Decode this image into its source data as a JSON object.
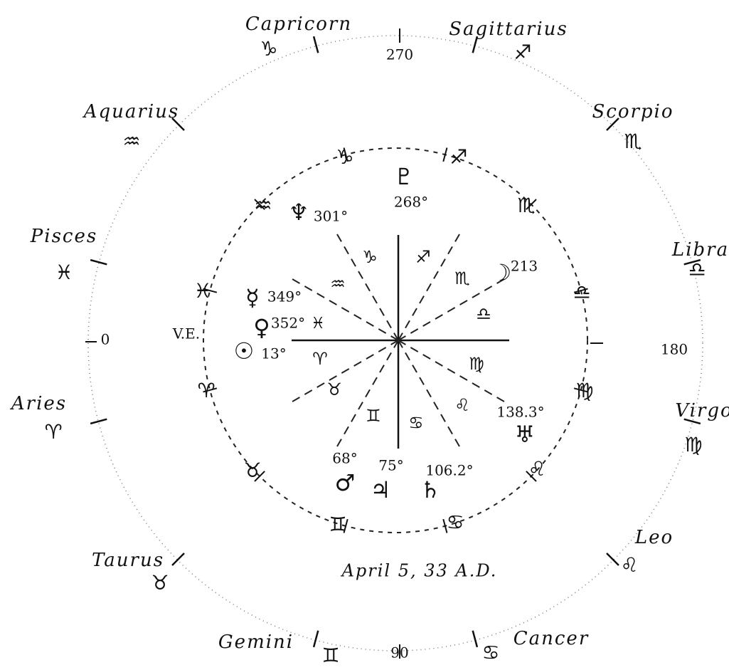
{
  "outer_signs": [
    {
      "name": "Capricorn",
      "glyph": "♑"
    },
    {
      "name": "Sagittarius",
      "glyph": "♐"
    },
    {
      "name": "Scorpio",
      "glyph": "♏"
    },
    {
      "name": "Libra",
      "glyph": "♎"
    },
    {
      "name": "Virgo",
      "glyph": "♍"
    },
    {
      "name": "Leo",
      "glyph": "♌"
    },
    {
      "name": "Cancer",
      "glyph": "♋"
    },
    {
      "name": "Gemini",
      "glyph": "♊"
    },
    {
      "name": "Taurus",
      "glyph": "♉"
    },
    {
      "name": "Aries",
      "glyph": "♈"
    },
    {
      "name": "Pisces",
      "glyph": "♓"
    },
    {
      "name": "Aquarius",
      "glyph": "♒"
    }
  ],
  "axis_degrees": [
    "270",
    "180",
    "90",
    "0"
  ],
  "inner_ring_glyphs": [
    "♑",
    "♐",
    "♏",
    "♎",
    "♍",
    "♌",
    "♋",
    "♊",
    "♉",
    "♈",
    "♓",
    "♒"
  ],
  "inner_sector_glyphs": [
    "♑",
    "♐",
    "♏",
    "♎",
    "♍",
    "♌",
    "♋",
    "♊",
    "♉",
    "♈",
    "♒"
  ],
  "planets": [
    {
      "glyph": "♇",
      "degree": "268°"
    },
    {
      "glyph": "♆",
      "degree": "301°"
    },
    {
      "glyph": "☿",
      "degree": "349°"
    },
    {
      "glyph": "♀",
      "degree": "352°",
      "sign": "♓"
    },
    {
      "glyph": "☉",
      "degree": "13°"
    },
    {
      "glyph": "☽",
      "degree": "213"
    },
    {
      "glyph": "♅",
      "degree": "138.3°"
    },
    {
      "glyph": "♂",
      "degree": "68°"
    },
    {
      "glyph": "♃",
      "degree": "75°"
    },
    {
      "glyph": "♄",
      "degree": "106.2°"
    }
  ],
  "vernal_equinox": "V.E.",
  "date": "April 5, 33 A.D."
}
